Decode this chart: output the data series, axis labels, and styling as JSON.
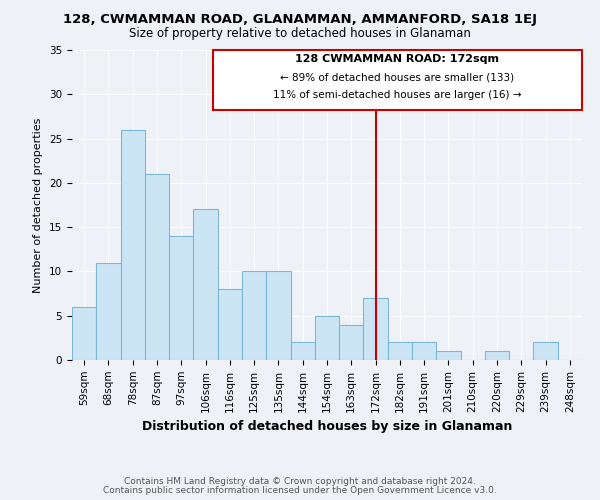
{
  "title": "128, CWMAMMAN ROAD, GLANAMMAN, AMMANFORD, SA18 1EJ",
  "subtitle": "Size of property relative to detached houses in Glanaman",
  "xlabel": "Distribution of detached houses by size in Glanaman",
  "ylabel": "Number of detached properties",
  "bar_labels": [
    "59sqm",
    "68sqm",
    "78sqm",
    "87sqm",
    "97sqm",
    "106sqm",
    "116sqm",
    "125sqm",
    "135sqm",
    "144sqm",
    "154sqm",
    "163sqm",
    "172sqm",
    "182sqm",
    "191sqm",
    "201sqm",
    "210sqm",
    "220sqm",
    "229sqm",
    "239sqm",
    "248sqm"
  ],
  "bar_values": [
    6,
    11,
    26,
    21,
    14,
    17,
    8,
    10,
    10,
    2,
    5,
    4,
    7,
    2,
    2,
    1,
    0,
    1,
    0,
    2,
    0
  ],
  "bar_color": "#cce5f5",
  "bar_edge_color": "#7ab8d4",
  "marker_index": 12,
  "marker_color": "#cc0000",
  "annotation_title": "128 CWMAMMAN ROAD: 172sqm",
  "annotation_line1": "← 89% of detached houses are smaller (133)",
  "annotation_line2": "11% of semi-detached houses are larger (16) →",
  "annotation_box_color": "#ffffff",
  "annotation_border_color": "#cc0000",
  "ylim": [
    0,
    35
  ],
  "yticks": [
    0,
    5,
    10,
    15,
    20,
    25,
    30,
    35
  ],
  "footer1": "Contains HM Land Registry data © Crown copyright and database right 2024.",
  "footer2": "Contains public sector information licensed under the Open Government Licence v3.0.",
  "background_color": "#eef2f7",
  "grid_color": "#ffffff",
  "title_fontsize": 9.5,
  "subtitle_fontsize": 8.5,
  "xlabel_fontsize": 9,
  "ylabel_fontsize": 8,
  "tick_fontsize": 7.5,
  "footer_fontsize": 6.5
}
